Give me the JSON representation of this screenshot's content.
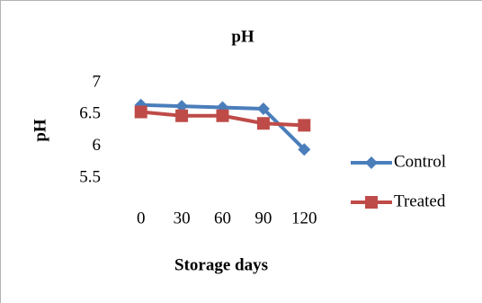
{
  "chart_data": {
    "type": "line",
    "title": "pH",
    "xlabel": "Storage days",
    "ylabel": "pH",
    "x": [
      0,
      30,
      60,
      90,
      120
    ],
    "xlim": [
      -15,
      135
    ],
    "xticks": [
      0,
      30,
      60,
      90,
      120
    ],
    "ylim": [
      5.5,
      7
    ],
    "yticks": [
      5.5,
      6,
      6.5,
      7
    ],
    "grid": false,
    "legend": "right",
    "series": [
      {
        "name": "Control",
        "color": "#4a7ebb",
        "marker": "diamond",
        "values": [
          6.65,
          6.63,
          6.61,
          6.59,
          5.95
        ]
      },
      {
        "name": "Treated",
        "color": "#be4b48",
        "marker": "square",
        "values": [
          6.54,
          6.48,
          6.48,
          6.36,
          6.33
        ]
      }
    ]
  }
}
